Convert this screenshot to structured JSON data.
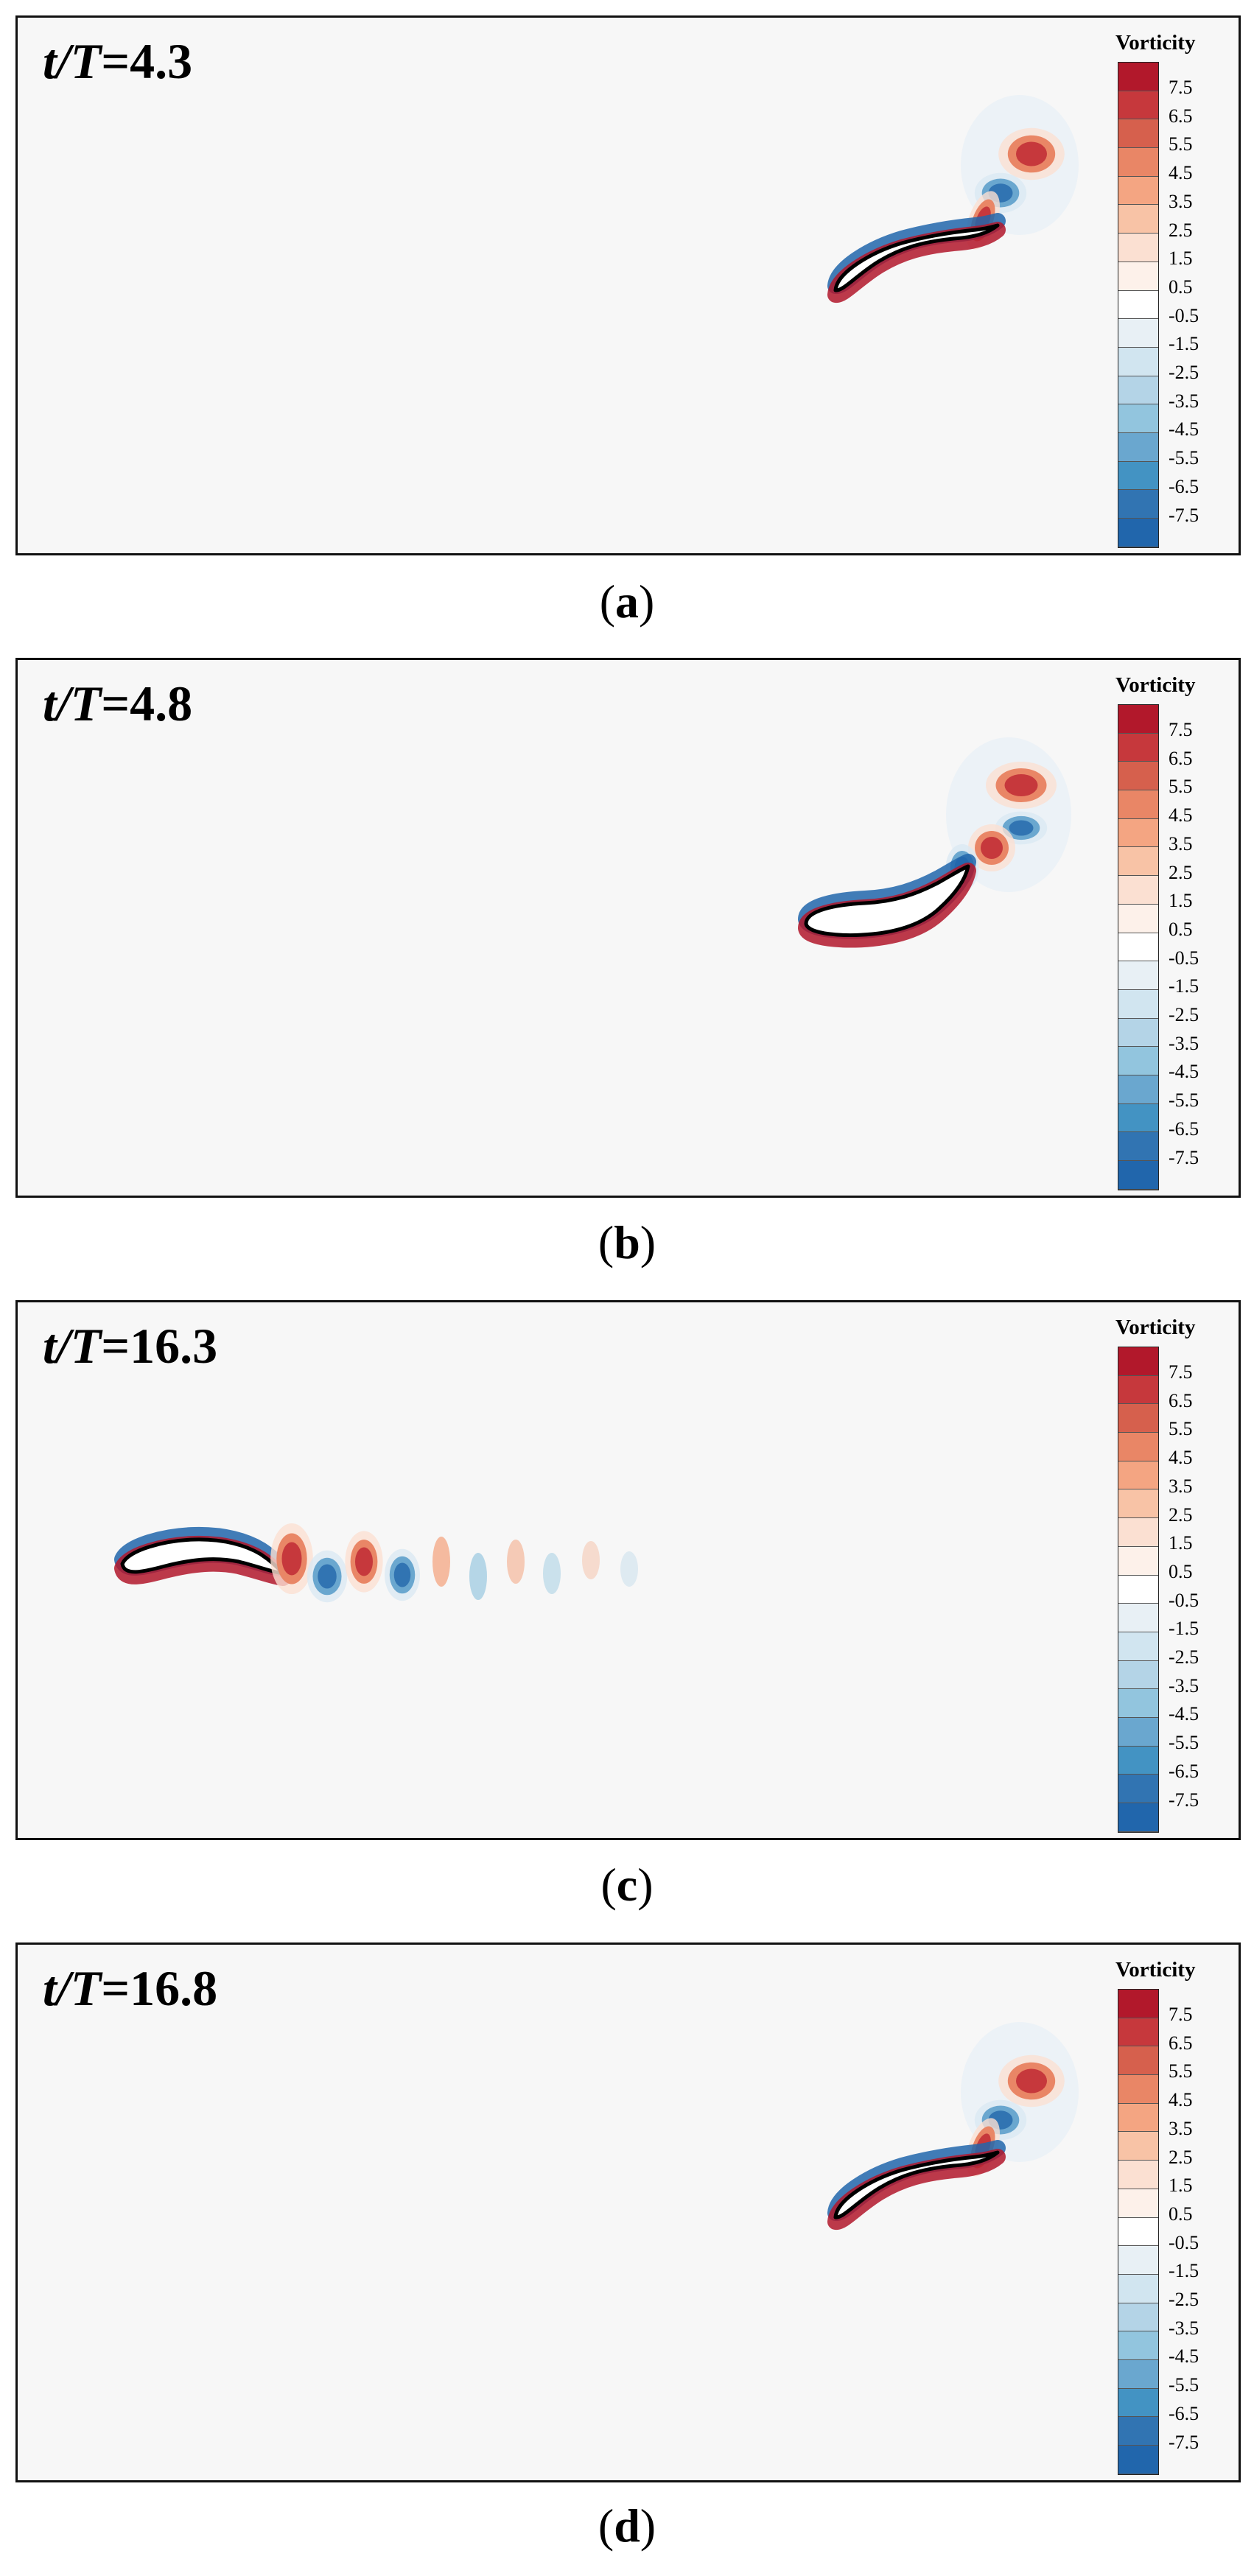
{
  "panels": [
    {
      "time_prefix": "t/T",
      "time_value": "=4.3",
      "caption_letter": "a",
      "scene": "right-high"
    },
    {
      "time_prefix": "t/T",
      "time_value": "=4.8",
      "caption_letter": "b",
      "scene": "right-low"
    },
    {
      "time_prefix": "t/T",
      "time_value": "=16.3",
      "caption_letter": "c",
      "scene": "left-wake"
    },
    {
      "time_prefix": "t/T",
      "time_value": "=16.8",
      "caption_letter": "d",
      "scene": "right-high"
    }
  ],
  "legend": {
    "title": "Vorticity",
    "ticks": [
      "7.5",
      "6.5",
      "5.5",
      "4.5",
      "3.5",
      "2.5",
      "1.5",
      "0.5",
      "-0.5",
      "-1.5",
      "-2.5",
      "-3.5",
      "-4.5",
      "-5.5",
      "-6.5",
      "-7.5"
    ],
    "colors": [
      "#b2182b",
      "#c6383c",
      "#d6604d",
      "#e98666",
      "#f4a582",
      "#f8c3a6",
      "#fbe0d2",
      "#fdf1ea",
      "#ffffff",
      "#e8f0f5",
      "#d1e5f0",
      "#b4d4e7",
      "#92c5de",
      "#6aa7cf",
      "#4393c3",
      "#3174b2",
      "#2166ac"
    ]
  },
  "colors": {
    "positive": "#b2182b",
    "negative": "#2166ac",
    "background": "#f7f7f7"
  }
}
